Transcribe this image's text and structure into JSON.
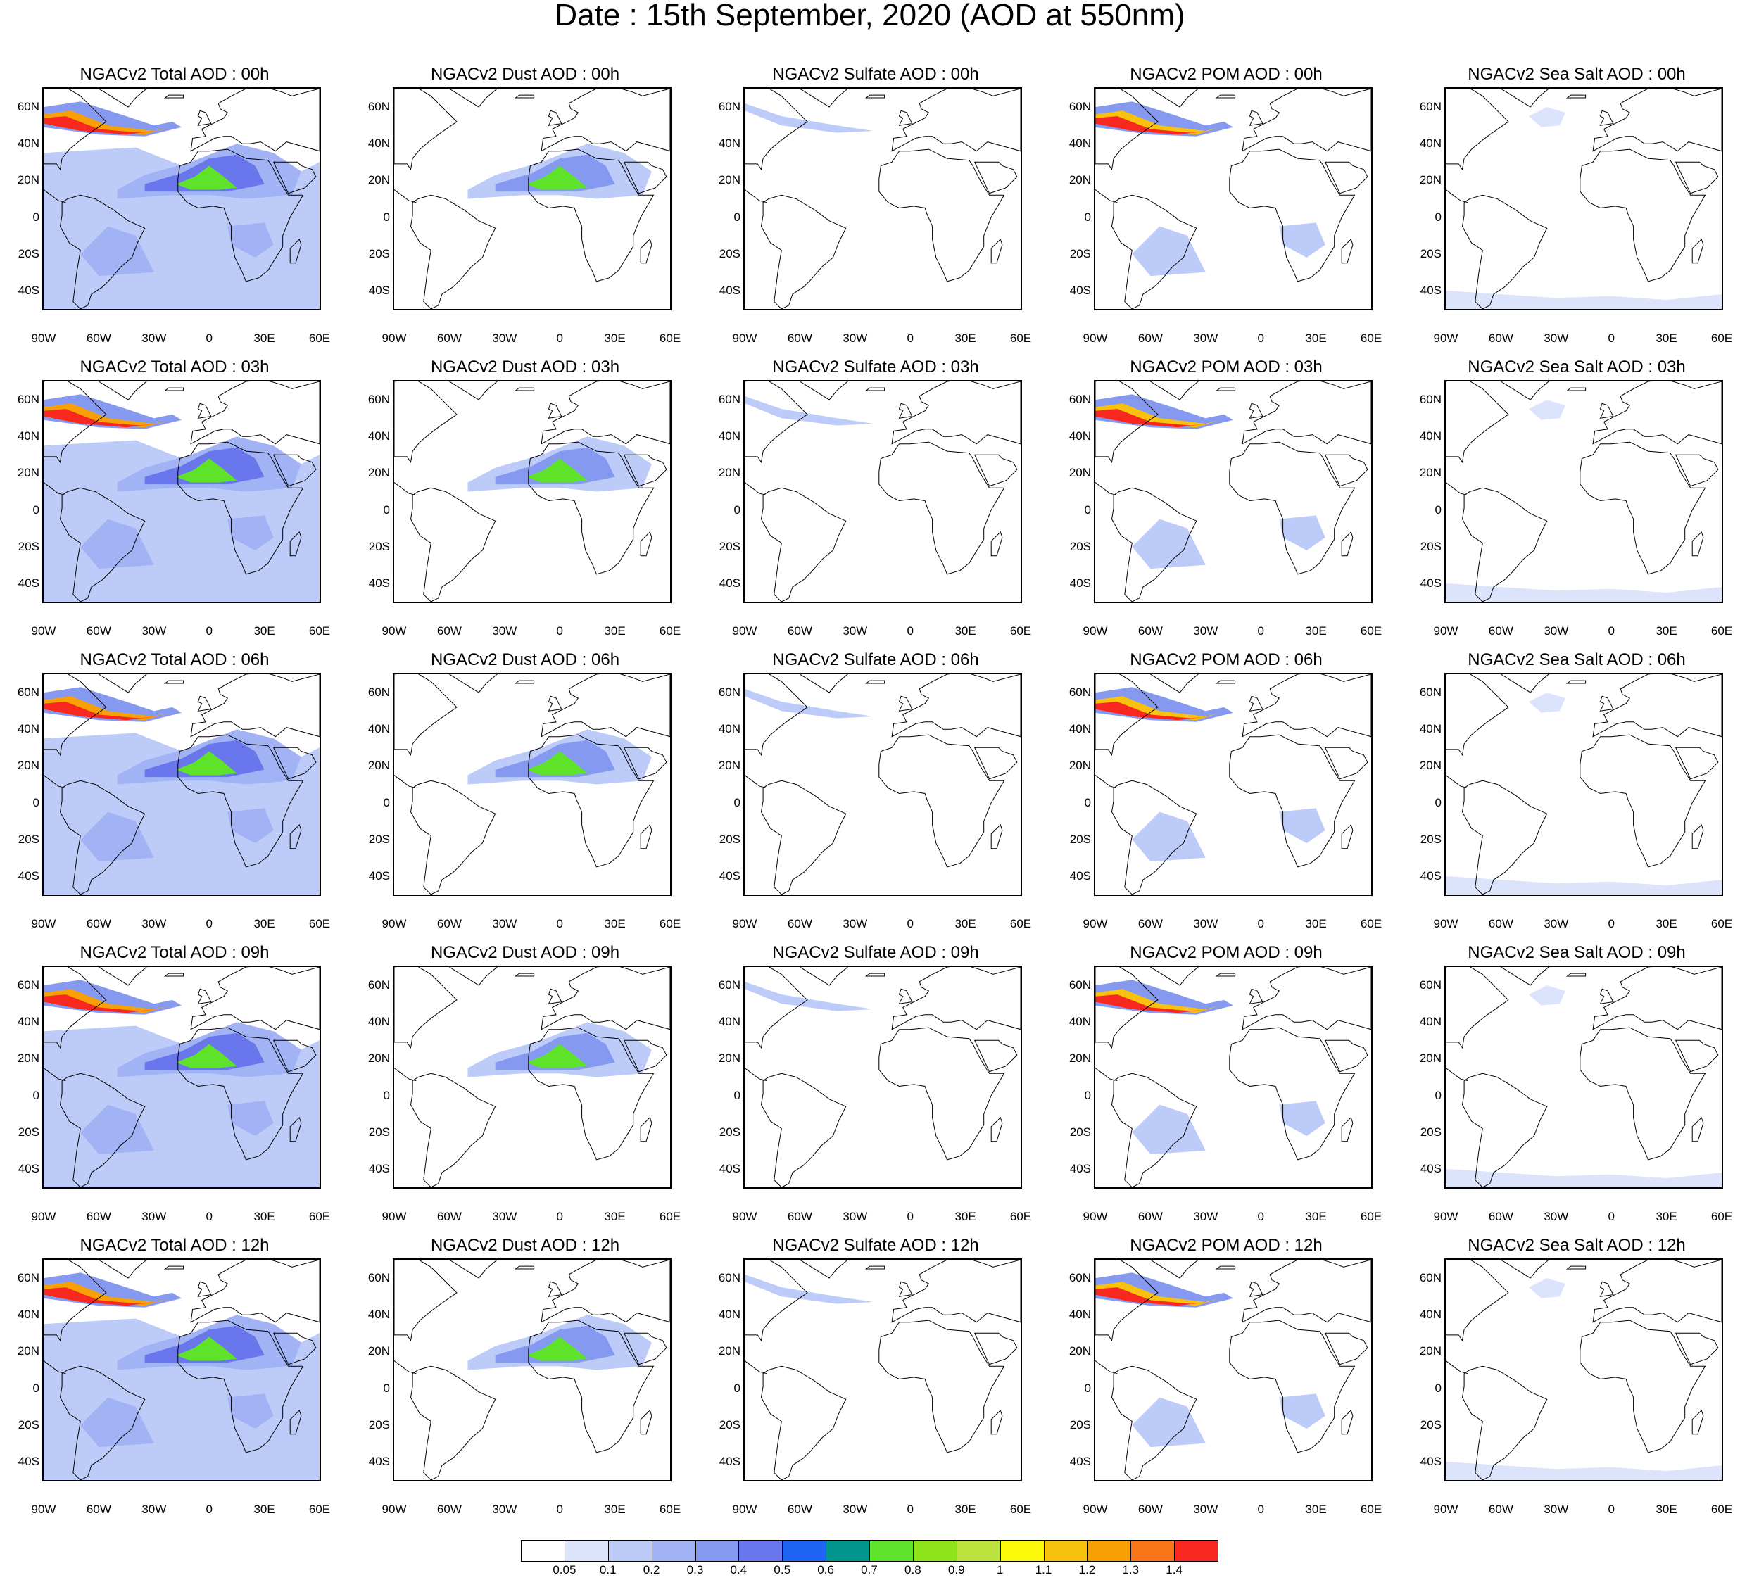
{
  "title": "Date : 15th September, 2020 (AOD at 550nm)",
  "axes": {
    "lat_ticks": [
      "60N",
      "40N",
      "20N",
      "0",
      "20S",
      "40S"
    ],
    "lat_values": [
      60,
      40,
      20,
      0,
      -20,
      -40
    ],
    "lon_ticks": [
      "90W",
      "60W",
      "30W",
      "0",
      "30E",
      "60E"
    ],
    "lon_values": [
      -90,
      -60,
      -30,
      0,
      30,
      60
    ],
    "lon_range": [
      -90,
      60
    ],
    "lat_range": [
      -50,
      70
    ]
  },
  "panels": [
    [
      "NGACv2 Total AOD : 00h",
      "NGACv2 Dust AOD : 00h",
      "NGACv2 Sulfate AOD : 00h",
      "NGACv2 POM AOD : 00h",
      "NGACv2 Sea Salt AOD : 00h"
    ],
    [
      "NGACv2 Total AOD : 03h",
      "NGACv2 Dust AOD : 03h",
      "NGACv2 Sulfate AOD : 03h",
      "NGACv2 POM AOD : 03h",
      "NGACv2 Sea Salt AOD : 03h"
    ],
    [
      "NGACv2 Total AOD : 06h",
      "NGACv2 Dust AOD : 06h",
      "NGACv2 Sulfate AOD : 06h",
      "NGACv2 POM AOD : 06h",
      "NGACv2 Sea Salt AOD : 06h"
    ],
    [
      "NGACv2 Total AOD : 09h",
      "NGACv2 Dust AOD : 09h",
      "NGACv2 Sulfate AOD : 09h",
      "NGACv2 POM AOD : 09h",
      "NGACv2 Sea Salt  AOD : 09h"
    ],
    [
      "NGACv2 Total AOD  : 12h",
      "NGACv2 Dust AOD : 12h",
      "NGACv2 Sulfate AOD : 12h",
      "NGACv2 POM  AOD : 12h",
      "NGACv2 Sea Salt  AOD : 12h"
    ]
  ],
  "legend": {
    "colors": [
      "#ffffff",
      "#dbe4fb",
      "#bccbf7",
      "#a1b3f4",
      "#8599f1",
      "#6a77ec",
      "#1e63f2",
      "#00968e",
      "#5ee32a",
      "#8fe31b",
      "#bde33f",
      "#fbf90a",
      "#f9c20c",
      "#f8a106",
      "#f87416",
      "#f8281f"
    ],
    "labels": [
      "0.05",
      "0.1",
      "0.2",
      "0.3",
      "0.4",
      "0.5",
      "0.6",
      "0.7",
      "0.8",
      "0.9",
      "1",
      "1.1",
      "1.2",
      "1.3",
      "1.4"
    ]
  }
}
